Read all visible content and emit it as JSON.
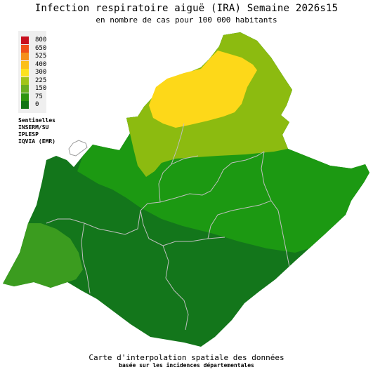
{
  "title": "Infection respiratoire aiguë (IRA) Semaine 2026s15",
  "subtitle": "en nombre de cas pour 100 000 habitants",
  "legend": {
    "items": [
      {
        "label": "800",
        "color": "#c8101f"
      },
      {
        "label": "650",
        "color": "#f0501a"
      },
      {
        "label": "525",
        "color": "#f5901a"
      },
      {
        "label": "400",
        "color": "#fbbf1a"
      },
      {
        "label": "300",
        "color": "#fde21f"
      },
      {
        "label": "225",
        "color": "#a2c41a"
      },
      {
        "label": "150",
        "color": "#6aae22"
      },
      {
        "label": "75",
        "color": "#2e9410"
      },
      {
        "label": "0",
        "color": "#127515"
      }
    ]
  },
  "sources": [
    "Sentinelles",
    "INSERM/SU",
    "IPLESP",
    "IQVIA (EMR)"
  ],
  "footer": {
    "line1": "Carte d'interpolation spatiale des données",
    "line2": "basée sur les incidences départementales"
  },
  "map_colors": {
    "yellow": "#fdd819",
    "light_green": "#8cbb10",
    "mid_green": "#1c9912",
    "dark_green": "#13761b",
    "bright_green": "#3b9c1f",
    "border": "#bfbfbf"
  }
}
